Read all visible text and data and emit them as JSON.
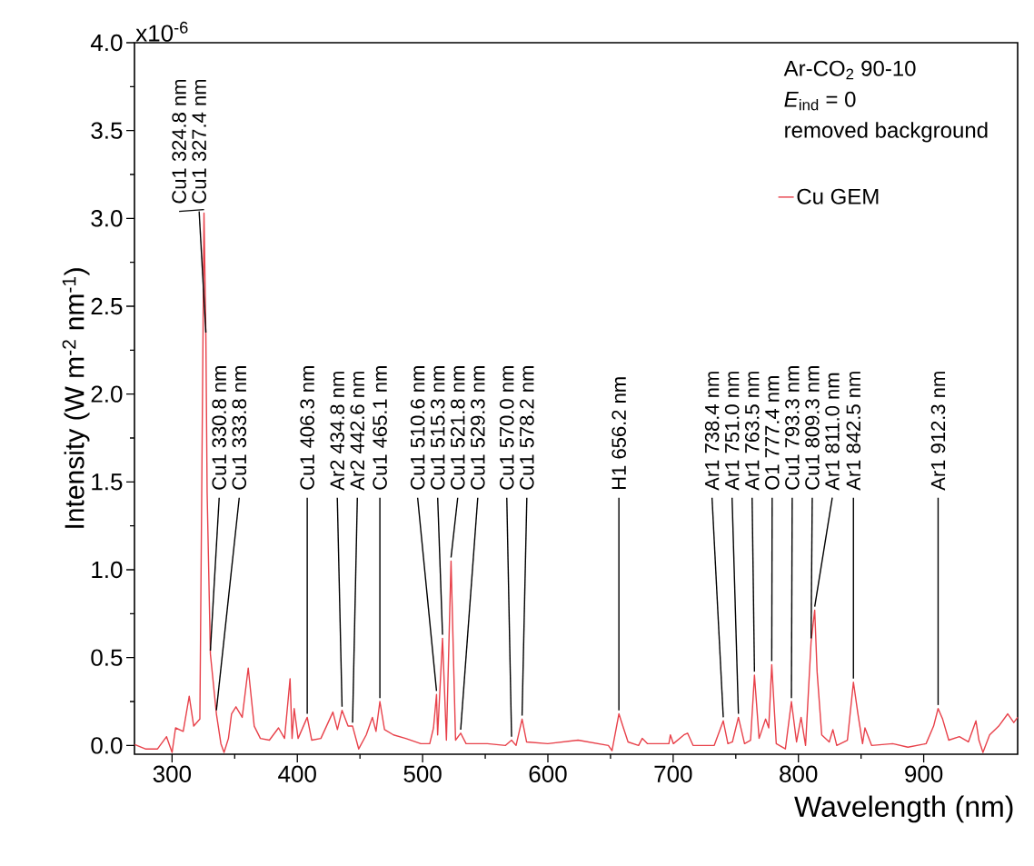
{
  "chart_data": {
    "type": "line",
    "xlabel": "Wavelength (nm)",
    "ylabel": "Intensity (W m$^{-2}$ nm$^{-1}$)",
    "xlim": [
      270,
      975
    ],
    "ylim": [
      -0.05,
      4.0
    ],
    "xticks": [
      300,
      400,
      500,
      600,
      700,
      800,
      900
    ],
    "yticks": [
      {
        "value": 0,
        "label": "0.0"
      },
      {
        "value": 0.5,
        "label": "0.5"
      },
      {
        "value": 1,
        "label": "1.0"
      },
      {
        "value": 1.5,
        "label": "1.5"
      },
      {
        "value": 2,
        "label": "2.0"
      },
      {
        "value": 2.5,
        "label": "2.5"
      },
      {
        "value": 3,
        "label": "3.0"
      },
      {
        "value": 3.5,
        "label": "3.5"
      },
      {
        "value": 4,
        "label": "4.0"
      }
    ],
    "legend": "top right",
    "series": [
      {
        "name": "Cu GEM",
        "color": "#e8414a",
        "line_style": "solid",
        "x": [
          270.2,
          278.7,
          288.4,
          295.6,
          300,
          302.8,
          308.9,
          313.7,
          317.3,
          322.2,
          325.5,
          327.0,
          328.0,
          330.6,
          335.4,
          339,
          341.5,
          345,
          347.5,
          351,
          356,
          360.8,
          365.6,
          370.5,
          377.7,
          385,
          389.8,
          394.2,
          395.8,
          397.5,
          400.6,
          407.9,
          411.5,
          418.8,
          428.4,
          432,
          435.7,
          440.5,
          444.1,
          449,
          455,
          459.9,
          462.8,
          465.9,
          469.6,
          476.8,
          486.5,
          498.6,
          505.7,
          508.7,
          511.1,
          512,
          515.9,
          519.0,
          522.7,
          526.3,
          530.4,
          534.7,
          551.7,
          566.2,
          571,
          574.6,
          579.4,
          583,
          599.9,
          624.1,
          648.3,
          651.2,
          656.7,
          660.3,
          664,
          672.4,
          675.3,
          679.6,
          696.6,
          697.8,
          700.2,
          708.6,
          711.5,
          715.9,
          732.8,
          740,
          743.7,
          747.3,
          752.1,
          757,
          761.8,
          764.9,
          768.6,
          773.8,
          776.3,
          778.7,
          782.3,
          789.6,
          794.4,
          798.5,
          802.1,
          805.7,
          810.1,
          813,
          814.9,
          818.6,
          824.6,
          827.5,
          830.6,
          839.1,
          843.9,
          847.5,
          851.2,
          853.1,
          858.4,
          875.3,
          887.4,
          901.9,
          907.9,
          911.5,
          915.1,
          920,
          928.5,
          935.7,
          941.7,
          944.1,
          947.3,
          952.6,
          959.9,
          967.1,
          971.9,
          975
        ],
        "values": [
          0.005,
          -0.02,
          -0.02,
          0.05,
          -0.04,
          0.1,
          0.08,
          0.28,
          0.11,
          0.15,
          3.03,
          2.33,
          1.44,
          0.52,
          0.18,
          0.01,
          -0.04,
          0.04,
          0.18,
          0.22,
          0.16,
          0.44,
          0.11,
          0.04,
          0.03,
          0.1,
          0.04,
          0.38,
          0.04,
          0.21,
          0.04,
          0.16,
          0.03,
          0.04,
          0.19,
          0.09,
          0.2,
          0.11,
          0.11,
          -0.02,
          0.06,
          0.16,
          0.08,
          0.25,
          0.09,
          0.06,
          0.04,
          0.01,
          0.01,
          0.1,
          0.29,
          0.06,
          0.61,
          0.03,
          1.05,
          0.03,
          0.07,
          0.01,
          0.01,
          0.0,
          0.03,
          0.0,
          0.15,
          0.02,
          0.01,
          0.03,
          0.0,
          -0.03,
          0.18,
          0.1,
          0.02,
          0.0,
          0.04,
          0.01,
          0.01,
          0.06,
          0.01,
          0.06,
          0.07,
          0.0,
          0.0,
          0.14,
          0.01,
          0.02,
          0.16,
          0.01,
          0.03,
          0.4,
          0.04,
          0.15,
          0.1,
          0.46,
          0.01,
          -0.02,
          0.25,
          0.02,
          0.16,
          0.0,
          0.59,
          0.77,
          0.42,
          0.06,
          0.02,
          0.09,
          0.0,
          0.03,
          0.36,
          0.18,
          0.01,
          0.1,
          0.0,
          0.01,
          -0.01,
          0.01,
          0.11,
          0.21,
          0.15,
          0.03,
          0.05,
          0.02,
          0.14,
          0.03,
          -0.04,
          0.06,
          0.11,
          0.18,
          0.13,
          0.16
        ]
      }
    ],
    "annotations": [
      "x10$^{-6}$",
      "Ar-CO$_{2}$ 90-10",
      "*E*$_{ind}$ = 0",
      "removed background",
      {
        "text": "Cu1 324.8 nm",
        "x": 325.5,
        "y": 3.03
      },
      {
        "text": "Cu1 327.4 nm",
        "x": 327.0,
        "y": 2.33
      },
      {
        "text": "Cu1 330.8 nm",
        "x": 330.6,
        "y": 0.52
      },
      {
        "text": "Cu1 333.8 nm",
        "x": 335.4,
        "y": 0.18
      },
      {
        "text": "Cu1 406.3 nm",
        "x": 407.9,
        "y": 0.16
      },
      {
        "text": "Ar2 434.8 nm",
        "x": 435.7,
        "y": 0.2
      },
      {
        "text": "Ar2 442.6 nm",
        "x": 444.1,
        "y": 0.11
      },
      {
        "text": "Cu1 465.1 nm",
        "x": 465.9,
        "y": 0.25
      },
      {
        "text": "Cu1 510.6 nm",
        "x": 511.1,
        "y": 0.29
      },
      {
        "text": "Cu1 515.3 nm",
        "x": 515.9,
        "y": 0.61
      },
      {
        "text": "Cu1 521.8 nm",
        "x": 522.7,
        "y": 1.05
      },
      {
        "text": "Cu1 529.3 nm",
        "x": 530.4,
        "y": 0.07
      },
      {
        "text": "Cu1 570.0 nm",
        "x": 571,
        "y": 0.03
      },
      {
        "text": "Cu1 578.2 nm",
        "x": 579.4,
        "y": 0.15
      },
      {
        "text": "H1 656.2 nm",
        "x": 656.7,
        "y": 0.18
      },
      {
        "text": "Ar1 738.4 nm",
        "x": 740,
        "y": 0.14
      },
      {
        "text": "Ar1 751.0 nm",
        "x": 752.1,
        "y": 0.16
      },
      {
        "text": "Ar1 763.5 nm",
        "x": 764.9,
        "y": 0.4
      },
      {
        "text": "O1 777.4 nm",
        "x": 778.7,
        "y": 0.46
      },
      {
        "text": "Cu1 793.3 nm",
        "x": 794.4,
        "y": 0.25
      },
      {
        "text": "Cu1 809.3 nm",
        "x": 810.1,
        "y": 0.59
      },
      {
        "text": "Ar1 811.0 nm",
        "x": 813,
        "y": 0.77
      },
      {
        "text": "Ar1 842.5 nm",
        "x": 843.9,
        "y": 0.36
      },
      {
        "text": "Ar1 912.3 nm",
        "x": 911.5,
        "y": 0.21
      }
    ]
  }
}
